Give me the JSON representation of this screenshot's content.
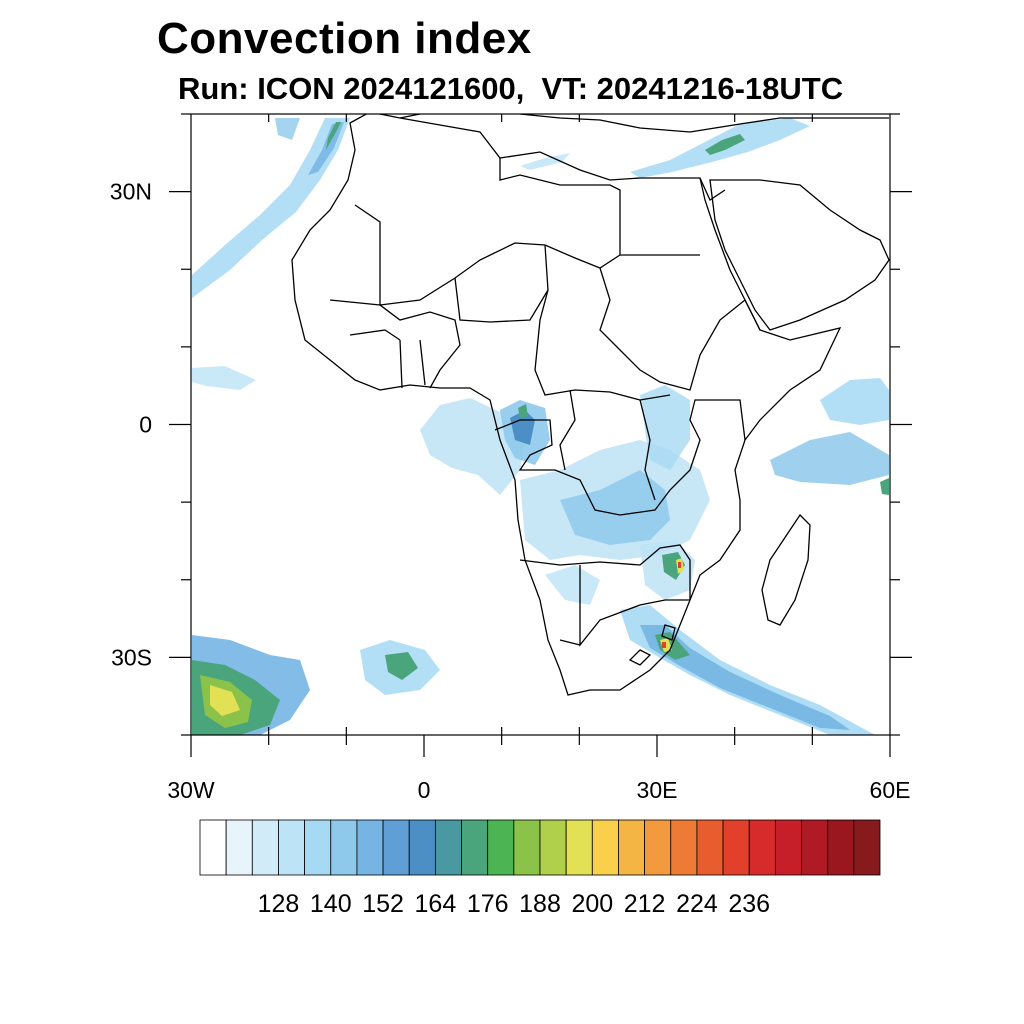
{
  "title": "Convection index",
  "subtitle": "Run: ICON 2024121600,  VT: 20241216-18UTC",
  "map": {
    "lon_range": [
      -30,
      60
    ],
    "lat_range": [
      -40,
      40
    ],
    "x_ticks": [
      {
        "lon": -30,
        "label": "30W"
      },
      {
        "lon": 0,
        "label": "0"
      },
      {
        "lon": 30,
        "label": "30E"
      },
      {
        "lon": 60,
        "label": "60E"
      }
    ],
    "y_ticks": [
      {
        "lat": 30,
        "label": "30N"
      },
      {
        "lat": 0,
        "label": "0"
      },
      {
        "lat": -30,
        "label": "30S"
      }
    ]
  },
  "colorbar": {
    "colors": [
      "#ffffff",
      "#e8f4fb",
      "#d2ebf8",
      "#bde3f6",
      "#a6d9f4",
      "#8ec9ec",
      "#76b5e3",
      "#5f9fd6",
      "#4c8fc5",
      "#4a99a2",
      "#4ba57c",
      "#4cb452",
      "#8bc34a",
      "#b0d04c",
      "#e2e156",
      "#f8d04c",
      "#f5b545",
      "#f29a3d",
      "#ee7b35",
      "#e85d2e",
      "#e2402a",
      "#d62b2a",
      "#c61f29",
      "#b01a24",
      "#9b171f",
      "#881a1e"
    ],
    "labels": [
      "128",
      "140",
      "152",
      "164",
      "176",
      "188",
      "200",
      "212",
      "224",
      "236"
    ]
  }
}
